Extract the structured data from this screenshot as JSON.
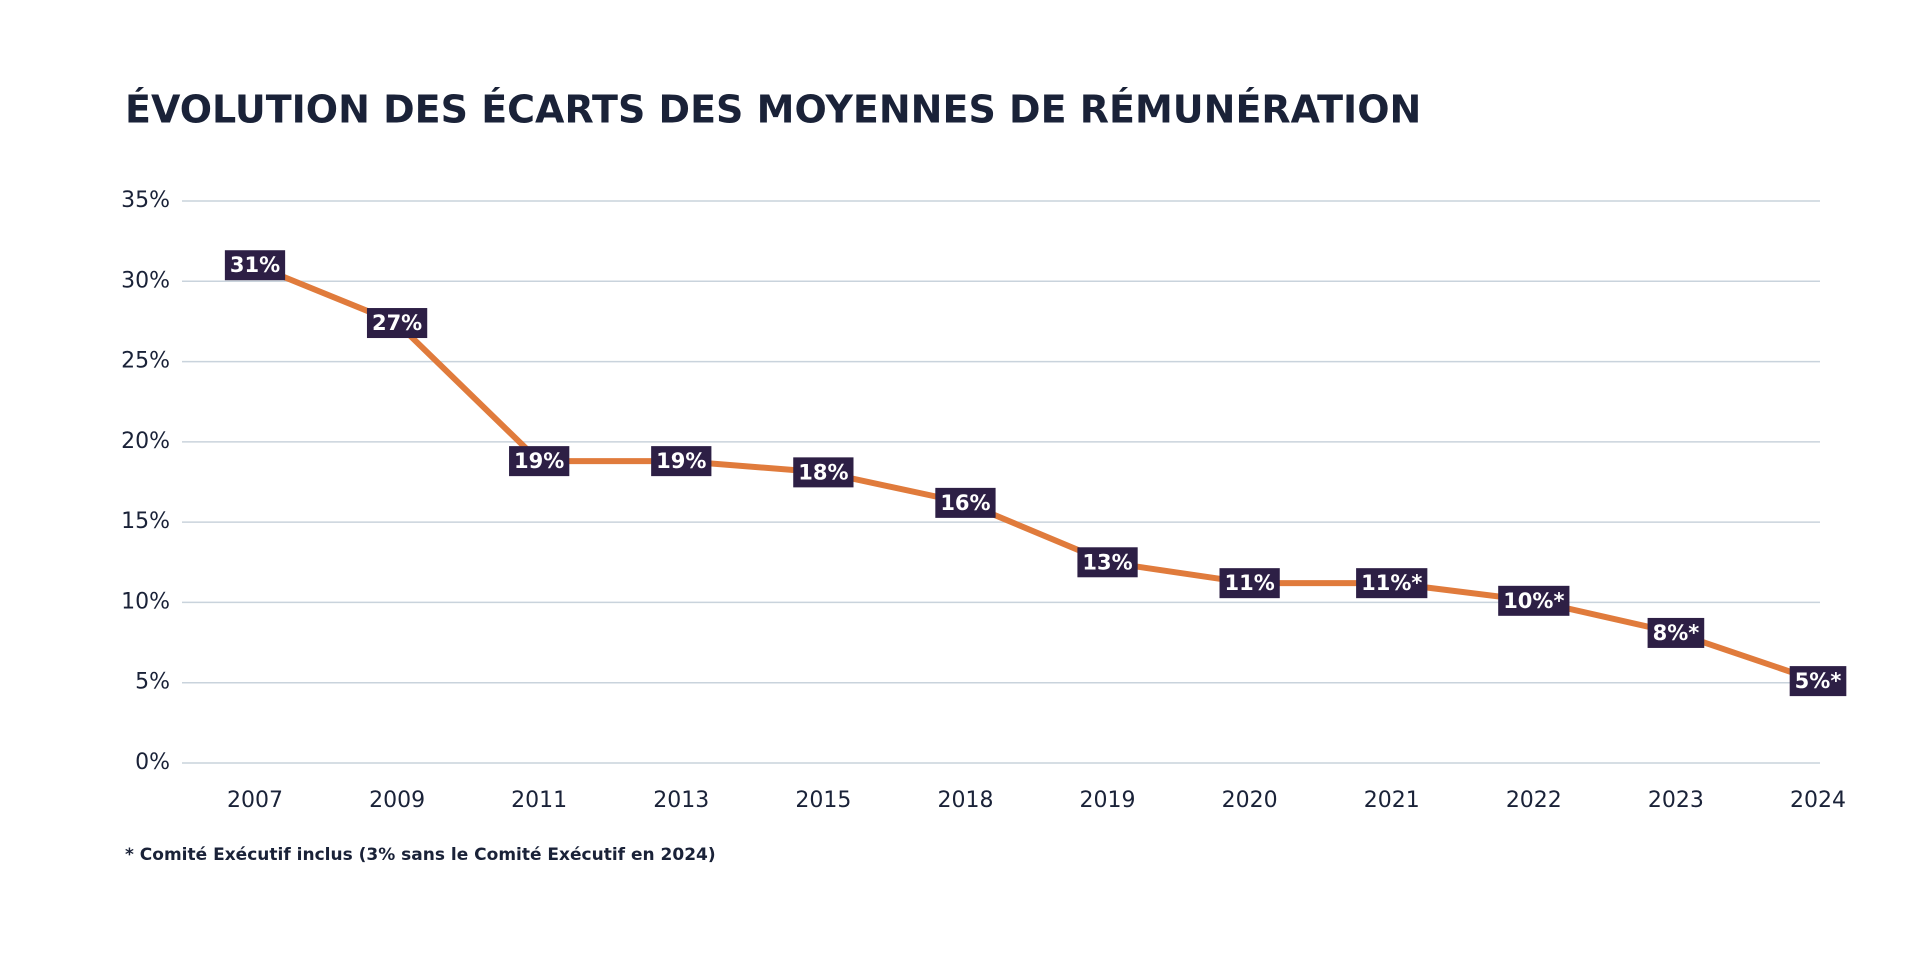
{
  "chart_data": {
    "type": "line",
    "title": "ÉVOLUTION DES ÉCARTS DES MOYENNES DE RÉMUNÉRATION",
    "categories": [
      "2007",
      "2009",
      "2011",
      "2013",
      "2015",
      "2018",
      "2019",
      "2020",
      "2021",
      "2022",
      "2023",
      "2024"
    ],
    "series": [
      {
        "name": "Écart",
        "color": "#e07b3c",
        "values": [
          31,
          27.4,
          18.8,
          18.8,
          18.1,
          16.2,
          12.5,
          11.2,
          11.2,
          10.1,
          8.1,
          5.1
        ],
        "value_labels": [
          "31%",
          "27%",
          "19%",
          "19%",
          "18%",
          "16%",
          "13%",
          "11%",
          "11%*",
          "10%*",
          "8%*",
          "5%*"
        ]
      }
    ],
    "label_color": "#2d1f45",
    "ylim": [
      0,
      35
    ],
    "yticks": [
      {
        "value": 0,
        "label": "0%"
      },
      {
        "value": 5,
        "label": "5%"
      },
      {
        "value": 10,
        "label": "10%"
      },
      {
        "value": 15,
        "label": "15%"
      },
      {
        "value": 20,
        "label": "20%"
      },
      {
        "value": 25,
        "label": "25%"
      },
      {
        "value": 30,
        "label": "30%"
      },
      {
        "value": 35,
        "label": "35%"
      }
    ],
    "grid": true,
    "footnote": "* Comité Exécutif inclus (3% sans le Comité Exécutif en 2024)"
  }
}
